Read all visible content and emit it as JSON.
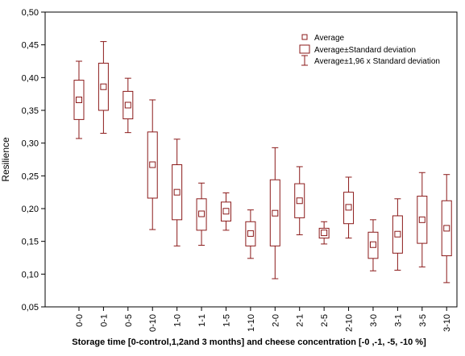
{
  "chart_data": {
    "type": "box",
    "xlabel": "Storage time [0-control,1,2and 3 months] and cheese concentration [-0 ,-1, -5, -10 %]",
    "ylabel": "Resilience",
    "ylim": [
      0.05,
      0.5
    ],
    "yticks": [
      "0,05",
      "0,10",
      "0,15",
      "0,20",
      "0,25",
      "0,30",
      "0,35",
      "0,40",
      "0,45",
      "0,50"
    ],
    "grid": false,
    "legend_position": "top-right",
    "legend": [
      {
        "marker": "square",
        "label": "Average"
      },
      {
        "marker": "box",
        "label": "Average±Standard deviation"
      },
      {
        "marker": "whisker",
        "label": "Average±1,96 x Standard deviation"
      }
    ],
    "color": "#8b1a1a",
    "categories": [
      "0-0",
      "0-1",
      "0-5",
      "0-10",
      "1-0",
      "1-1",
      "1-5",
      "1-10",
      "2-0",
      "2-1",
      "2-5",
      "2-10",
      "3-0",
      "3-1",
      "3-5",
      "3-10"
    ],
    "mean": [
      0.366,
      0.386,
      0.358,
      0.267,
      0.225,
      0.192,
      0.196,
      0.162,
      0.193,
      0.212,
      0.163,
      0.202,
      0.145,
      0.161,
      0.183,
      0.17
    ],
    "sd_low": [
      0.336,
      0.35,
      0.337,
      0.216,
      0.183,
      0.167,
      0.181,
      0.143,
      0.143,
      0.186,
      0.155,
      0.177,
      0.124,
      0.132,
      0.147,
      0.128
    ],
    "sd_high": [
      0.396,
      0.422,
      0.379,
      0.317,
      0.267,
      0.215,
      0.21,
      0.18,
      0.244,
      0.238,
      0.17,
      0.225,
      0.164,
      0.189,
      0.219,
      0.212
    ],
    "ci_low": [
      0.307,
      0.315,
      0.316,
      0.168,
      0.143,
      0.144,
      0.167,
      0.124,
      0.093,
      0.16,
      0.146,
      0.155,
      0.105,
      0.106,
      0.111,
      0.087
    ],
    "ci_high": [
      0.425,
      0.455,
      0.399,
      0.366,
      0.306,
      0.239,
      0.224,
      0.198,
      0.293,
      0.264,
      0.18,
      0.248,
      0.183,
      0.215,
      0.255,
      0.252
    ]
  }
}
